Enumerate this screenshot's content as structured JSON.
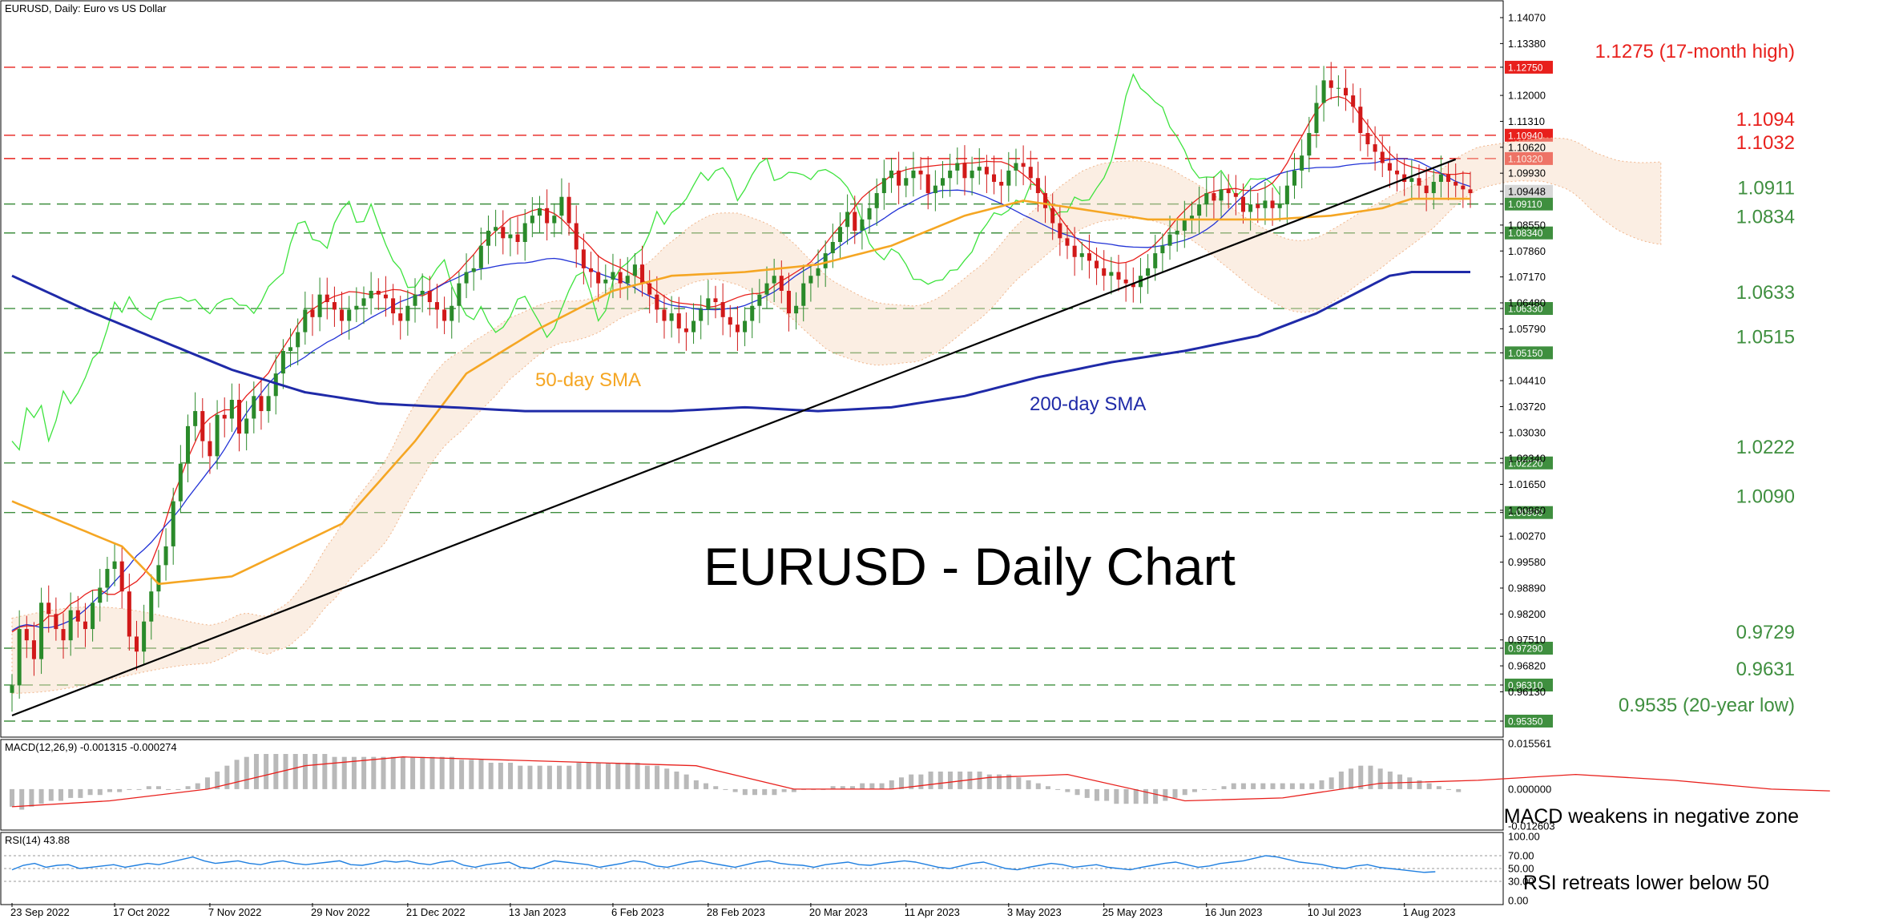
{
  "header": {
    "symbol_line": "EURUSD, Daily:  Euro vs US Dollar",
    "macd_label": "MACD(12,26,9) -0.001315 -0.000274",
    "rsi_label": "RSI(14) 43.88"
  },
  "chart_data": {
    "type": "candlestick",
    "title": "EURUSD - Daily Chart",
    "symbol": "EURUSD",
    "timeframe": "Daily",
    "ylim": [
      0.9535,
      1.1407
    ],
    "y_ticks": [
      "1.14070",
      "1.13380",
      "1.12750",
      "1.12000",
      "1.11310",
      "1.10620",
      "1.09930",
      "1.09448",
      "1.09110",
      "1.08550",
      "1.08340",
      "1.07860",
      "1.07170",
      "1.06480",
      "1.06330",
      "1.05790",
      "1.05150",
      "1.04410",
      "1.03720",
      "1.03030",
      "1.02340",
      "1.02220",
      "1.01650",
      "1.00960",
      "1.00900",
      "1.00270",
      "0.99580",
      "0.98890",
      "0.98200",
      "0.97510",
      "0.97290",
      "0.96820",
      "0.96310",
      "0.96130",
      "0.95350"
    ],
    "x_ticks": [
      "23 Sep 2022",
      "17 Oct 2022",
      "7 Nov 2022",
      "29 Nov 2022",
      "21 Dec 2022",
      "13 Jan 2023",
      "6 Feb 2023",
      "28 Feb 2023",
      "20 Mar 2023",
      "11 Apr 2023",
      "3 May 2023",
      "25 May 2023",
      "16 Jun 2023",
      "10 Jul 2023",
      "1 Aug 2023"
    ],
    "current_price": 1.09448,
    "levels": [
      {
        "label": "1.1275 (17-month high)",
        "value": 1.1275,
        "tag": "1.12750",
        "color": "#e8201c"
      },
      {
        "label": "1.1094",
        "value": 1.1094,
        "tag": "1.10940",
        "color": "#e8201c"
      },
      {
        "label": "1.1032",
        "value": 1.1032,
        "tag": "1.10320",
        "color": "#e8201c"
      },
      {
        "label": "1.0911",
        "value": 1.0911,
        "tag": "1.09110",
        "color": "#3f8f3f"
      },
      {
        "label": "1.0834",
        "value": 1.0834,
        "tag": "1.08340",
        "color": "#3f8f3f"
      },
      {
        "label": "1.0633",
        "value": 1.0633,
        "tag": "1.06330",
        "color": "#3f8f3f"
      },
      {
        "label": "1.0515",
        "value": 1.0515,
        "tag": "1.05150",
        "color": "#3f8f3f"
      },
      {
        "label": "1.0222",
        "value": 1.0222,
        "tag": "1.02220",
        "color": "#3f8f3f"
      },
      {
        "label": "1.0090",
        "value": 1.009,
        "tag": "1.00900",
        "color": "#3f8f3f"
      },
      {
        "label": "0.9729",
        "value": 0.9729,
        "tag": "0.97290",
        "color": "#3f8f3f"
      },
      {
        "label": "0.9631",
        "value": 0.9631,
        "tag": "0.96310",
        "color": "#3f8f3f"
      },
      {
        "label": "0.9535 (20-year low)",
        "value": 0.9535,
        "tag": "0.95350",
        "color": "#3f8f3f"
      }
    ],
    "series": [
      {
        "name": "50-day SMA",
        "color": "#f5a623"
      },
      {
        "name": "200-day SMA",
        "color": "#1f2aa8"
      }
    ],
    "closes": [
      0.963,
      0.978,
      0.975,
      0.97,
      0.985,
      0.982,
      0.978,
      0.975,
      0.983,
      0.98,
      0.978,
      0.985,
      0.989,
      0.994,
      0.996,
      0.988,
      0.976,
      0.972,
      0.98,
      0.988,
      0.995,
      1.0,
      1.012,
      1.022,
      1.032,
      1.036,
      1.028,
      1.024,
      1.035,
      1.034,
      1.039,
      1.03,
      1.034,
      1.04,
      1.036,
      1.04,
      1.046,
      1.052,
      1.053,
      1.057,
      1.063,
      1.061,
      1.067,
      1.065,
      1.063,
      1.06,
      1.063,
      1.064,
      1.066,
      1.068,
      1.067,
      1.066,
      1.062,
      1.06,
      1.064,
      1.067,
      1.068,
      1.065,
      1.063,
      1.06,
      1.064,
      1.07,
      1.073,
      1.074,
      1.08,
      1.084,
      1.085,
      1.082,
      1.083,
      1.081,
      1.086,
      1.088,
      1.09,
      1.086,
      1.088,
      1.093,
      1.086,
      1.079,
      1.074,
      1.073,
      1.07,
      1.071,
      1.073,
      1.07,
      1.072,
      1.075,
      1.07,
      1.067,
      1.063,
      1.06,
      1.062,
      1.058,
      1.057,
      1.06,
      1.063,
      1.066,
      1.065,
      1.061,
      1.059,
      1.057,
      1.06,
      1.064,
      1.067,
      1.07,
      1.072,
      1.068,
      1.062,
      1.064,
      1.07,
      1.072,
      1.074,
      1.078,
      1.081,
      1.085,
      1.089,
      1.084,
      1.087,
      1.09,
      1.094,
      1.098,
      1.1,
      1.096,
      1.098,
      1.1,
      1.099,
      1.094,
      1.096,
      1.098,
      1.1,
      1.102,
      1.098,
      1.1,
      1.101,
      1.099,
      1.097,
      1.096,
      1.1,
      1.102,
      1.101,
      1.098,
      1.094,
      1.09,
      1.086,
      1.082,
      1.08,
      1.077,
      1.078,
      1.076,
      1.074,
      1.072,
      1.073,
      1.071,
      1.07,
      1.069,
      1.072,
      1.074,
      1.078,
      1.08,
      1.083,
      1.084,
      1.087,
      1.088,
      1.091,
      1.094,
      1.092,
      1.095,
      1.094,
      1.093,
      1.089,
      1.091,
      1.09,
      1.092,
      1.09,
      1.091,
      1.096,
      1.1,
      1.104,
      1.11,
      1.118,
      1.124,
      1.122,
      1.122,
      1.12,
      1.117,
      1.11,
      1.107,
      1.105,
      1.102,
      1.1,
      1.099,
      1.097,
      1.098,
      1.096,
      1.094,
      1.097,
      1.099,
      1.097,
      1.096,
      1.095,
      1.094
    ],
    "sma50_anchors": [
      [
        0,
        1.012
      ],
      [
        15,
        1.0
      ],
      [
        20,
        0.99
      ],
      [
        30,
        0.992
      ],
      [
        45,
        1.006
      ],
      [
        55,
        1.028
      ],
      [
        62,
        1.046
      ],
      [
        72,
        1.058
      ],
      [
        82,
        1.068
      ],
      [
        90,
        1.072
      ],
      [
        100,
        1.073
      ],
      [
        110,
        1.075
      ],
      [
        120,
        1.08
      ],
      [
        130,
        1.088
      ],
      [
        138,
        1.092
      ],
      [
        145,
        1.09
      ],
      [
        155,
        1.087
      ],
      [
        165,
        1.087
      ],
      [
        172,
        1.087
      ],
      [
        180,
        1.088
      ],
      [
        187,
        1.09
      ],
      [
        191,
        1.0925
      ]
    ],
    "sma200_anchors": [
      [
        0,
        1.072
      ],
      [
        10,
        1.063
      ],
      [
        20,
        1.055
      ],
      [
        30,
        1.047
      ],
      [
        40,
        1.041
      ],
      [
        50,
        1.038
      ],
      [
        60,
        1.037
      ],
      [
        70,
        1.036
      ],
      [
        80,
        1.036
      ],
      [
        90,
        1.036
      ],
      [
        100,
        1.037
      ],
      [
        110,
        1.036
      ],
      [
        120,
        1.037
      ],
      [
        130,
        1.04
      ],
      [
        140,
        1.045
      ],
      [
        150,
        1.049
      ],
      [
        160,
        1.052
      ],
      [
        170,
        1.056
      ],
      [
        178,
        1.062
      ],
      [
        184,
        1.068
      ],
      [
        188,
        1.072
      ],
      [
        191,
        1.073
      ]
    ],
    "trendline": [
      [
        0,
        0.955
      ],
      [
        197,
        1.103
      ]
    ],
    "macd_axis": [
      "0.015561",
      "0.000000",
      "-0.012603"
    ],
    "macd_ylim": [
      -0.012603,
      0.015561
    ],
    "macd_hist": [
      -0.006,
      -0.007,
      -0.006,
      -0.005,
      -0.004,
      -0.004,
      -0.003,
      -0.003,
      -0.002,
      -0.002,
      -0.001,
      -0.001,
      0.0,
      0.0,
      0.001,
      0.001,
      0.0,
      0.0,
      0.001,
      0.002,
      0.004,
      0.006,
      0.008,
      0.01,
      0.011,
      0.012,
      0.012,
      0.012,
      0.012,
      0.012,
      0.012,
      0.012,
      0.012,
      0.011,
      0.011,
      0.011,
      0.011,
      0.011,
      0.011,
      0.011,
      0.011,
      0.011,
      0.011,
      0.011,
      0.011,
      0.011,
      0.01,
      0.01,
      0.01,
      0.009,
      0.009,
      0.009,
      0.008,
      0.008,
      0.008,
      0.008,
      0.008,
      0.008,
      0.009,
      0.009,
      0.009,
      0.009,
      0.009,
      0.009,
      0.009,
      0.008,
      0.008,
      0.007,
      0.006,
      0.005,
      0.003,
      0.002,
      0.001,
      0.0,
      -0.001,
      -0.002,
      -0.002,
      -0.002,
      -0.002,
      -0.001,
      -0.001,
      0.0,
      0.0,
      0.0,
      0.001,
      0.001,
      0.001,
      0.002,
      0.002,
      0.002,
      0.003,
      0.004,
      0.005,
      0.005,
      0.006,
      0.006,
      0.006,
      0.006,
      0.006,
      0.006,
      0.005,
      0.005,
      0.005,
      0.004,
      0.003,
      0.002,
      0.001,
      0.0,
      -0.001,
      -0.002,
      -0.003,
      -0.004,
      -0.004,
      -0.005,
      -0.005,
      -0.005,
      -0.005,
      -0.005,
      -0.004,
      -0.003,
      -0.002,
      -0.001,
      0.0,
      0.0,
      0.001,
      0.002,
      0.002,
      0.002,
      0.002,
      0.002,
      0.002,
      0.002,
      0.002,
      0.002,
      0.003,
      0.004,
      0.006,
      0.007,
      0.008,
      0.008,
      0.007,
      0.006,
      0.005,
      0.004,
      0.003,
      0.002,
      0.001,
      0.0,
      -0.001
    ],
    "macd_signal": [
      [
        0,
        -0.006
      ],
      [
        10,
        -0.004
      ],
      [
        20,
        0.0
      ],
      [
        30,
        0.008
      ],
      [
        40,
        0.011
      ],
      [
        60,
        0.009
      ],
      [
        70,
        0.008
      ],
      [
        80,
        0.0
      ],
      [
        90,
        0.0
      ],
      [
        100,
        0.004
      ],
      [
        108,
        0.005
      ],
      [
        120,
        -0.004
      ],
      [
        130,
        -0.003
      ],
      [
        140,
        0.002
      ],
      [
        150,
        0.003
      ],
      [
        160,
        0.005
      ],
      [
        170,
        0.003
      ],
      [
        180,
        0.0
      ],
      [
        186,
        -0.0006
      ]
    ],
    "rsi_axis": [
      "100.00",
      "70.00",
      "50.00",
      "30.00",
      "0.00"
    ],
    "rsi_levels": [
      70,
      50,
      30
    ],
    "rsi_values": [
      48,
      55,
      58,
      52,
      55,
      56,
      50,
      52,
      54,
      56,
      52,
      55,
      58,
      56,
      60,
      64,
      68,
      62,
      58,
      60,
      62,
      58,
      56,
      60,
      62,
      58,
      56,
      58,
      60,
      62,
      56,
      55,
      58,
      62,
      60,
      62,
      58,
      56,
      60,
      62,
      55,
      52,
      56,
      58,
      60,
      52,
      50,
      56,
      62,
      60,
      58,
      56,
      52,
      55,
      58,
      62,
      60,
      54,
      52,
      56,
      60,
      62,
      58,
      55,
      52,
      56,
      60,
      62,
      58,
      56,
      55,
      52,
      56,
      58,
      60,
      56,
      55,
      58,
      60,
      62,
      60,
      56,
      52,
      50,
      54,
      58,
      60,
      55,
      50,
      48,
      52,
      55,
      58,
      56,
      52,
      54,
      56,
      52,
      50,
      48,
      52,
      55,
      58,
      60,
      56,
      52,
      54,
      58,
      60,
      62,
      66,
      70,
      68,
      64,
      60,
      58,
      56,
      52,
      50,
      54,
      56,
      52,
      50,
      48,
      46,
      44,
      45
    ],
    "annotations": [
      {
        "text": "50-day SMA",
        "color": "#f5a623"
      },
      {
        "text": "200-day SMA",
        "color": "#1f2aa8"
      },
      {
        "text": "MACD weakens in negative zone",
        "color": "#000000"
      },
      {
        "text": "RSI retreats lower below 50",
        "color": "#000000"
      }
    ]
  }
}
